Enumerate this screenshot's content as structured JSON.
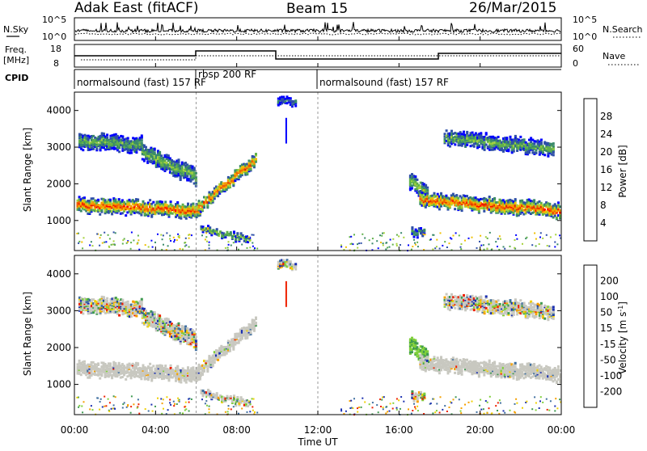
{
  "header": {
    "station": "Adak East (fitACF)",
    "beam": "Beam 15",
    "date": "26/Mar/2015"
  },
  "noise_panel": {
    "left_label": "N.Sky",
    "right_label": "N.Search",
    "left_ticks": [
      "10^5",
      "10^0"
    ],
    "right_ticks": [
      "10^5",
      "10^0"
    ]
  },
  "freq_panel": {
    "left_label_line1": "Freq.",
    "left_label_line2": "[MHz]",
    "left_ticks": [
      "18",
      "8"
    ],
    "right_label": "Nave",
    "right_ticks": [
      "60",
      "0"
    ]
  },
  "cpid": {
    "label": "CPID",
    "segments": [
      {
        "text": "normalsound (fast) 157 RF",
        "start_hour": 0,
        "end_hour": 6
      },
      {
        "text": "rbsp 200 RF",
        "start_hour": 6,
        "end_hour": 12
      },
      {
        "text": "normalsound (fast) 157 RF",
        "start_hour": 12,
        "end_hour": 24
      }
    ]
  },
  "x_axis": {
    "label": "Time UT",
    "ticks": [
      "00:00",
      "04:00",
      "08:00",
      "12:00",
      "16:00",
      "20:00",
      "00:00"
    ],
    "range_hours": [
      0,
      24
    ]
  },
  "chart_data": [
    {
      "type": "heatmap",
      "ylabel": "Slant Range [km]",
      "ylim": [
        180,
        4500
      ],
      "yticks": [
        1000,
        2000,
        3000,
        4000
      ],
      "colorbar": {
        "label": "Power [dB]",
        "tick_labels": [
          "4",
          "8",
          "12",
          "16",
          "20",
          "24",
          "28"
        ],
        "tick_values": [
          4,
          8,
          12,
          16,
          20,
          24,
          28
        ],
        "range": [
          0,
          32
        ],
        "colors": [
          "#0000ff",
          "#2e4fa8",
          "#3a8a6a",
          "#5fb04a",
          "#a6d23b",
          "#f0c000",
          "#f59a00",
          "#f06000",
          "#e02800",
          "#ff0000"
        ]
      },
      "dashed_marks_hours": [
        6,
        12
      ],
      "echo_regions": [
        {
          "t0": 0.1,
          "t1": 6.2,
          "r_start": 1450,
          "r_end": 1300,
          "thick": 350,
          "peak_db": 27
        },
        {
          "t0": 6.0,
          "t1": 8.9,
          "r_start": 1350,
          "r_end": 2700,
          "thick": 300,
          "peak_db": 26
        },
        {
          "t0": 0.2,
          "t1": 3.3,
          "r_start": 3200,
          "r_end": 3100,
          "thick": 400,
          "peak_db": 12
        },
        {
          "t0": 3.3,
          "t1": 6.0,
          "r_start": 2900,
          "r_end": 2200,
          "thick": 450,
          "peak_db": 13
        },
        {
          "t0": 6.2,
          "t1": 8.6,
          "r_start": 800,
          "r_end": 500,
          "thick": 150,
          "peak_db": 14
        },
        {
          "t0": 16.5,
          "t1": 17.4,
          "r_start": 2100,
          "r_end": 1800,
          "thick": 400,
          "peak_db": 14
        },
        {
          "t0": 17.0,
          "t1": 23.9,
          "r_start": 1600,
          "r_end": 1300,
          "thick": 350,
          "peak_db": 27
        },
        {
          "t0": 18.2,
          "t1": 23.6,
          "r_start": 3300,
          "r_end": 3000,
          "thick": 350,
          "peak_db": 12
        },
        {
          "t0": 16.6,
          "t1": 17.2,
          "r_start": 750,
          "r_end": 700,
          "thick": 200,
          "peak_db": 10
        },
        {
          "t0": 10.0,
          "t1": 10.9,
          "r_start": 4300,
          "r_end": 4300,
          "thick": 200,
          "peak_db": 6
        }
      ]
    },
    {
      "type": "heatmap",
      "ylabel": "Slant Range [km]",
      "ylim": [
        180,
        4500
      ],
      "yticks": [
        1000,
        2000,
        3000,
        4000
      ],
      "colorbar": {
        "label": "Velocity [m s^-1]",
        "tick_labels": [
          "200",
          "100",
          "50",
          "15",
          "-15",
          "-50",
          "-100",
          "-200"
        ],
        "tick_values": [
          200,
          100,
          50,
          15,
          -15,
          -50,
          -100,
          -200
        ],
        "colors": [
          "#1a2fb0",
          "#3f6fa0",
          "#3f9a50",
          "#7fcf3a",
          "#c8c8c0",
          "#f0d000",
          "#f5a000",
          "#f06000",
          "#ee2000"
        ]
      },
      "dashed_marks_hours": [
        6,
        12
      ],
      "ground_scatter_color": "#c8c8c0"
    }
  ]
}
